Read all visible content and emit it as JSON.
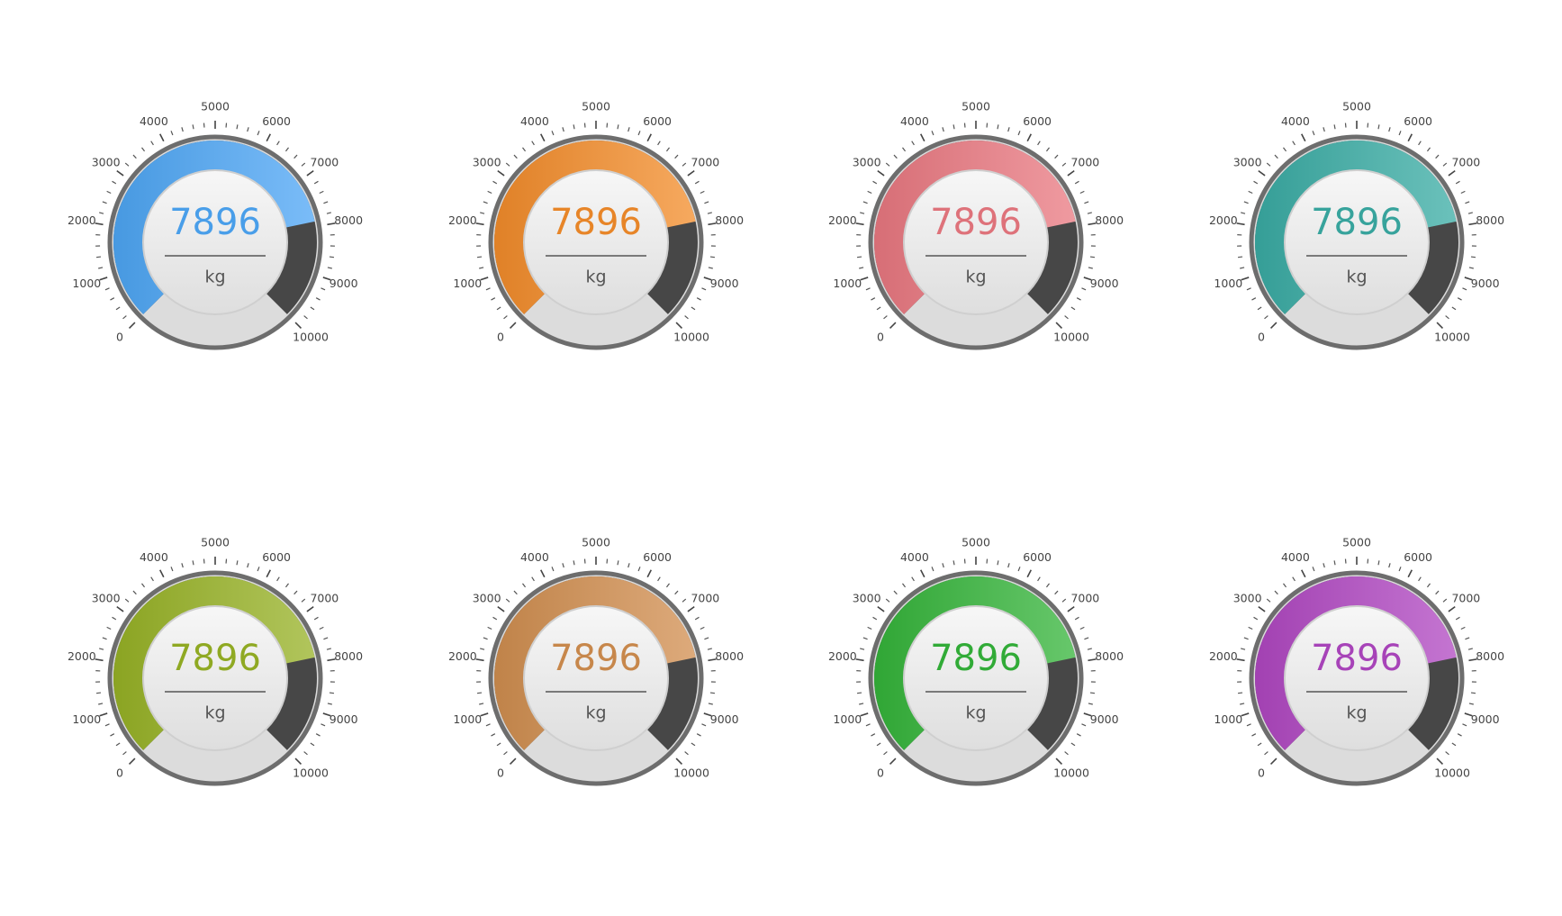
{
  "chart_data": [
    {
      "type": "gauge",
      "value": 7896,
      "unit": "kg",
      "ylim": [
        0,
        10000
      ],
      "yticks": [
        0,
        1000,
        2000,
        3000,
        4000,
        5000,
        6000,
        7000,
        8000,
        9000,
        10000
      ],
      "color": "#4da6f5"
    },
    {
      "type": "gauge",
      "value": 7896,
      "unit": "kg",
      "ylim": [
        0,
        10000
      ],
      "yticks": [
        0,
        1000,
        2000,
        3000,
        4000,
        5000,
        6000,
        7000,
        8000,
        9000,
        10000
      ],
      "color": "#f38c2a"
    },
    {
      "type": "gauge",
      "value": 7896,
      "unit": "kg",
      "ylim": [
        0,
        10000
      ],
      "yticks": [
        0,
        1000,
        2000,
        3000,
        4000,
        5000,
        6000,
        7000,
        8000,
        9000,
        10000
      ],
      "color": "#ea7880"
    },
    {
      "type": "gauge",
      "value": 7896,
      "unit": "kg",
      "ylim": [
        0,
        10000
      ],
      "yticks": [
        0,
        1000,
        2000,
        3000,
        4000,
        5000,
        6000,
        7000,
        8000,
        9000,
        10000
      ],
      "color": "#3aaca4"
    },
    {
      "type": "gauge",
      "value": 7896,
      "unit": "kg",
      "ylim": [
        0,
        10000
      ],
      "yticks": [
        0,
        1000,
        2000,
        3000,
        4000,
        5000,
        6000,
        7000,
        8000,
        9000,
        10000
      ],
      "color": "#97b225"
    },
    {
      "type": "gauge",
      "value": 7896,
      "unit": "kg",
      "ylim": [
        0,
        10000
      ],
      "yticks": [
        0,
        1000,
        2000,
        3000,
        4000,
        5000,
        6000,
        7000,
        8000,
        9000,
        10000
      ],
      "color": "#d18e4f"
    },
    {
      "type": "gauge",
      "value": 7896,
      "unit": "kg",
      "ylim": [
        0,
        10000
      ],
      "yticks": [
        0,
        1000,
        2000,
        3000,
        4000,
        5000,
        6000,
        7000,
        8000,
        9000,
        10000
      ],
      "color": "#34b43a"
    },
    {
      "type": "gauge",
      "value": 7896,
      "unit": "kg",
      "ylim": [
        0,
        10000
      ],
      "yticks": [
        0,
        1000,
        2000,
        3000,
        4000,
        5000,
        6000,
        7000,
        8000,
        9000,
        10000
      ],
      "color": "#b047c2"
    }
  ]
}
